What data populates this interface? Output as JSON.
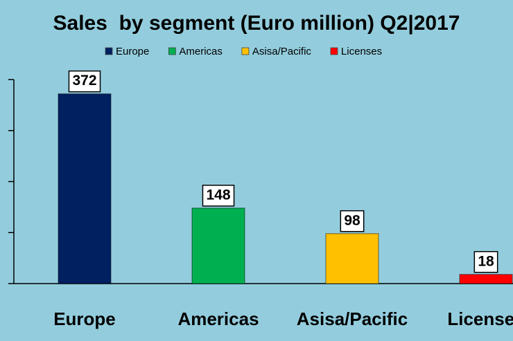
{
  "chart_data": {
    "type": "bar",
    "title": "Sales  by segment (Euro million) Q2|2017",
    "categories": [
      "Europe",
      "Americas",
      "Asisa/Pacific",
      "Licenses"
    ],
    "values": [
      372,
      148,
      98,
      18
    ],
    "colors": [
      "#002060",
      "#00b050",
      "#ffc000",
      "#ff0000"
    ],
    "ylim": [
      0,
      400
    ],
    "yticks": [
      0,
      100,
      200,
      300,
      400
    ],
    "legend": "top"
  }
}
